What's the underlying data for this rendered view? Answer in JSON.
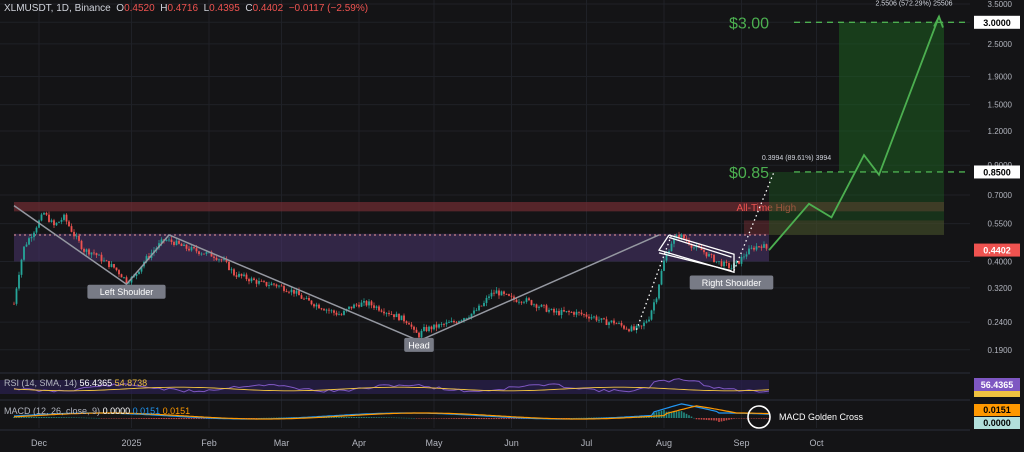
{
  "header": {
    "symbol": "XLMUSDT, 1D, Binance",
    "o_label": "O",
    "o": "0.4520",
    "h_label": "H",
    "h": "0.4716",
    "l_label": "L",
    "l": "0.4395",
    "c_label": "C",
    "c": "0.4402",
    "change": "−0.0117 (−2.59%)"
  },
  "colors": {
    "background": "#141416",
    "up": "#26a69a",
    "down": "#ef5350",
    "projection": "#4caf50",
    "pattern_line": "#9598a1",
    "purple_zone": "#4a3470",
    "ath_zone": "#7a2e36",
    "rsi_line": "#7e57c2",
    "rsi_sma": "#f0c240",
    "macd_line": "#2196f3",
    "signal_line": "#ff9800"
  },
  "chart_data": {
    "type": "candlestick",
    "y_scale": "log",
    "ylim": [
      0.17,
      3.5
    ],
    "y_ticks": [
      "3.5000",
      "3.0000",
      "2.5000",
      "1.9000",
      "1.5000",
      "1.2000",
      "0.9000",
      "0.7000",
      "0.5500",
      "0.4000",
      "0.3200",
      "0.2400",
      "0.1900"
    ],
    "x_ticks": [
      "Dec",
      "2025",
      "Feb",
      "Mar",
      "Apr",
      "May",
      "Jun",
      "Jul",
      "Aug",
      "Sep",
      "Oct"
    ],
    "price_tags": [
      {
        "label": "3.0000",
        "price": 3.0,
        "bg": "#ffffff",
        "fg": "#000000"
      },
      {
        "label": "0.8500",
        "price": 0.85,
        "bg": "#ffffff",
        "fg": "#000000"
      },
      {
        "label": "0.4402",
        "price": 0.4402,
        "bg": "#ef5350",
        "fg": "#ffffff"
      }
    ],
    "price_path": [
      [
        0,
        0.28
      ],
      [
        4,
        0.45
      ],
      [
        8,
        0.52
      ],
      [
        12,
        0.6
      ],
      [
        16,
        0.54
      ],
      [
        20,
        0.58
      ],
      [
        24,
        0.5
      ],
      [
        28,
        0.44
      ],
      [
        32,
        0.43
      ],
      [
        36,
        0.4
      ],
      [
        40,
        0.38
      ],
      [
        45,
        0.34
      ],
      [
        48,
        0.35
      ],
      [
        52,
        0.4
      ],
      [
        56,
        0.44
      ],
      [
        60,
        0.48
      ],
      [
        64,
        0.47
      ],
      [
        68,
        0.45
      ],
      [
        72,
        0.44
      ],
      [
        76,
        0.43
      ],
      [
        80,
        0.42
      ],
      [
        84,
        0.4
      ],
      [
        88,
        0.36
      ],
      [
        92,
        0.35
      ],
      [
        96,
        0.34
      ],
      [
        100,
        0.33
      ],
      [
        104,
        0.33
      ],
      [
        108,
        0.32
      ],
      [
        112,
        0.31
      ],
      [
        116,
        0.29
      ],
      [
        120,
        0.28
      ],
      [
        124,
        0.27
      ],
      [
        128,
        0.26
      ],
      [
        131,
        0.255
      ],
      [
        134,
        0.27
      ],
      [
        138,
        0.28
      ],
      [
        142,
        0.28
      ],
      [
        146,
        0.27
      ],
      [
        150,
        0.26
      ],
      [
        154,
        0.25
      ],
      [
        158,
        0.24
      ],
      [
        160,
        0.22
      ],
      [
        162,
        0.215
      ],
      [
        164,
        0.225
      ],
      [
        168,
        0.23
      ],
      [
        172,
        0.235
      ],
      [
        176,
        0.24
      ],
      [
        180,
        0.25
      ],
      [
        184,
        0.26
      ],
      [
        188,
        0.28
      ],
      [
        190,
        0.3
      ],
      [
        193,
        0.31
      ],
      [
        196,
        0.3
      ],
      [
        200,
        0.29
      ],
      [
        204,
        0.29
      ],
      [
        208,
        0.28
      ],
      [
        212,
        0.27
      ],
      [
        216,
        0.26
      ],
      [
        220,
        0.26
      ],
      [
        224,
        0.26
      ],
      [
        228,
        0.255
      ],
      [
        232,
        0.25
      ],
      [
        236,
        0.24
      ],
      [
        240,
        0.24
      ],
      [
        244,
        0.23
      ],
      [
        248,
        0.225
      ],
      [
        251,
        0.23
      ],
      [
        254,
        0.25
      ],
      [
        257,
        0.3
      ],
      [
        260,
        0.4
      ],
      [
        263,
        0.47
      ],
      [
        266,
        0.5
      ],
      [
        269,
        0.48
      ],
      [
        272,
        0.45
      ],
      [
        275,
        0.44
      ],
      [
        278,
        0.42
      ],
      [
        281,
        0.4
      ],
      [
        284,
        0.39
      ],
      [
        287,
        0.38
      ],
      [
        290,
        0.4
      ],
      [
        293,
        0.43
      ],
      [
        296,
        0.45
      ],
      [
        299,
        0.46
      ],
      [
        302,
        0.44
      ]
    ],
    "annotations": [
      {
        "text": "Left Shoulder",
        "day": 45,
        "price": 0.31
      },
      {
        "text": "Head",
        "day": 162,
        "price": 0.198
      },
      {
        "text": "Right Shoulder",
        "day": 287,
        "price": 0.335
      }
    ],
    "zones": [
      {
        "label": "All-Time High",
        "from": 0.61,
        "to": 0.66
      },
      {
        "label": "",
        "from": 0.4,
        "to": 0.505
      }
    ],
    "targets": [
      {
        "label": "$3.00",
        "price": 3.0
      },
      {
        "label": "$0.85",
        "price": 0.85
      }
    ],
    "measure_labels": [
      {
        "text": "2.5506 (572.29%) 25506",
        "day": 360,
        "price": 3.45
      },
      {
        "text": "0.3994 (89.61%) 3994",
        "day": 313,
        "price": 0.94
      }
    ],
    "projection": [
      [
        302,
        0.44
      ],
      [
        318,
        0.65
      ],
      [
        327,
        0.58
      ],
      [
        340,
        0.98
      ],
      [
        346,
        0.83
      ],
      [
        370,
        3.15
      ]
    ],
    "neckline": {
      "from": [
        0,
        0.5
      ],
      "to": [
        302,
        0.5
      ]
    },
    "rsi": {
      "label": "RSI (14, SMA, 14)",
      "value": "56.4365",
      "sma": "54.8738"
    },
    "macd": {
      "label": "MACD (12, 26, close, 9)",
      "hist": "0.0000",
      "macd": "0.0151",
      "signal": "0.0151",
      "annotation": "MACD Golden Cross"
    }
  }
}
